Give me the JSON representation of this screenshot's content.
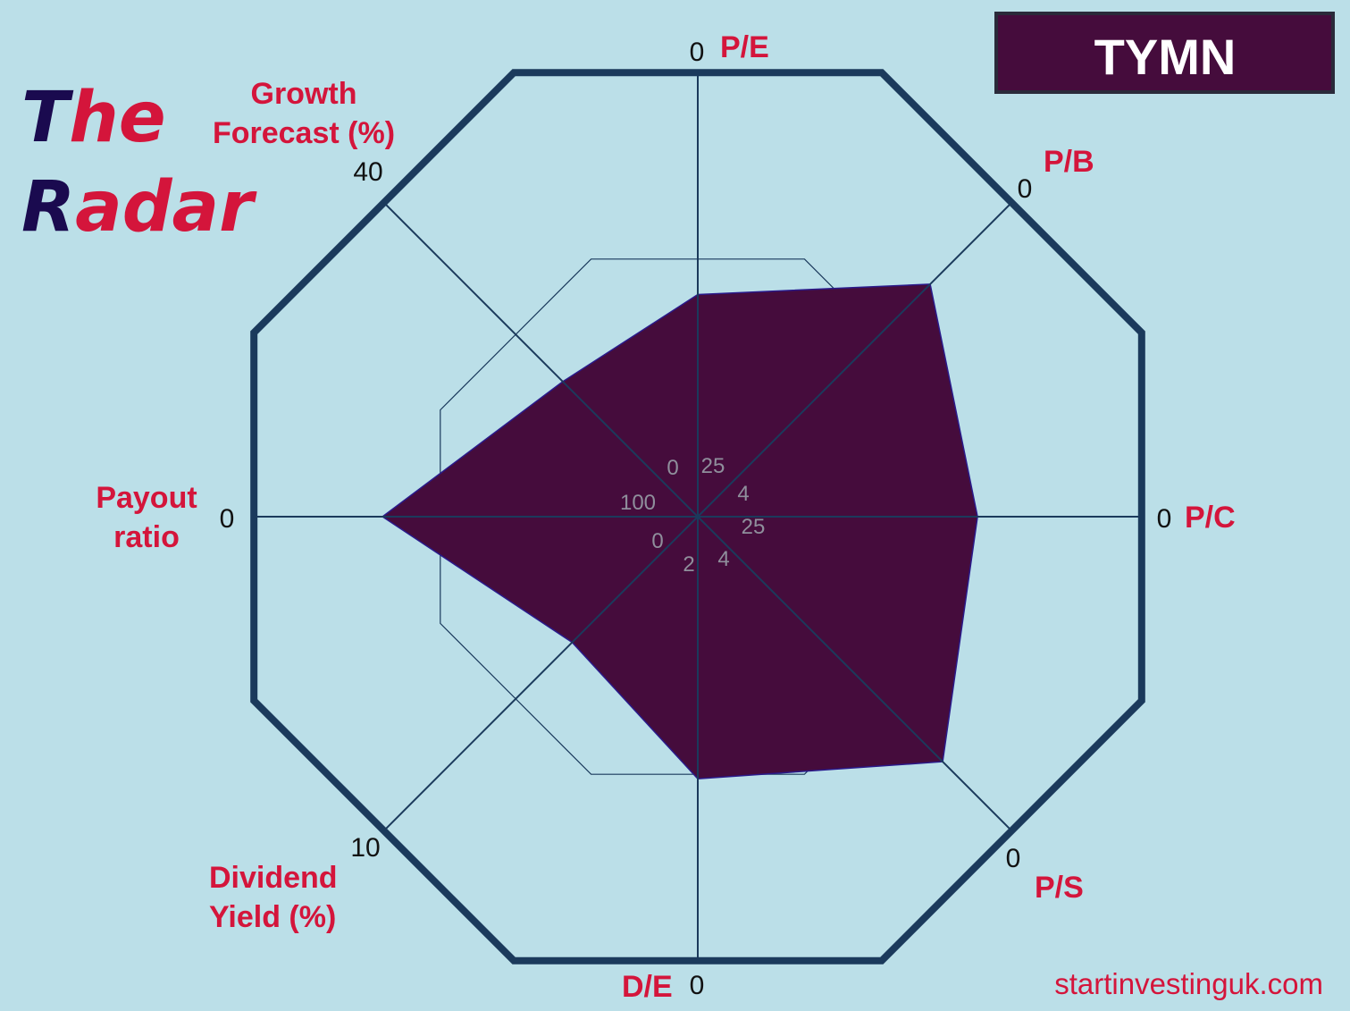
{
  "brand": {
    "line1_a": "T",
    "line1_b": "he",
    "line2_a": "R",
    "line2_b": "adar"
  },
  "ticker": "TYMN",
  "footer": "startinvestinguk.com",
  "colors": {
    "background": "#bbdfe8",
    "frame": "#1b3a5c",
    "fill": "#450c3c",
    "label": "#d4153b",
    "brand_dark": "#1a0a4f",
    "ticker_bg": "#450c3c"
  },
  "chart_data": {
    "type": "radar",
    "axes": [
      {
        "name": "P/E",
        "outer_tick": "0",
        "inner_tick": "25",
        "value": 0.5
      },
      {
        "name": "P/B",
        "outer_tick": "0",
        "inner_tick": "4",
        "value": 0.74
      },
      {
        "name": "P/C",
        "outer_tick": "0",
        "inner_tick": "25",
        "value": 0.63
      },
      {
        "name": "P/S",
        "outer_tick": "0",
        "inner_tick": "4",
        "value": 0.78
      },
      {
        "name": "D/E",
        "outer_tick": "0",
        "inner_tick": "2",
        "value": 0.59
      },
      {
        "name": "Dividend Yield (%)",
        "outer_tick": "10",
        "inner_tick": "0",
        "value": 0.4
      },
      {
        "name": "Payout ratio",
        "outer_tick": "0",
        "inner_tick": "100",
        "value": 0.71
      },
      {
        "name": "Growth Forecast (%)",
        "outer_tick": "40",
        "inner_tick": "0",
        "value": 0.43
      }
    ],
    "value_scale": "fraction of distance from centre to outer ring",
    "reference_ring": 0.58
  }
}
